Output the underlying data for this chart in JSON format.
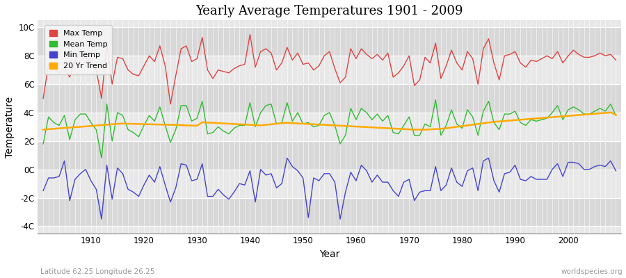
{
  "title": "Yearly Average Temperatures 1901 - 2009",
  "xlabel": "Year",
  "ylabel": "Temperature",
  "subtitle_left": "Latitude 62.25 Longitude 26.25",
  "subtitle_right": "worldspecies.org",
  "start_year": 1901,
  "end_year": 2009,
  "ylim": [
    -4.5,
    10.5
  ],
  "yticks": [
    -4,
    -2,
    0,
    2,
    4,
    6,
    8,
    10
  ],
  "ytick_labels": [
    "-4C",
    "-2C",
    "0C",
    "2C",
    "4C",
    "6C",
    "8C",
    "10C"
  ],
  "fig_bg_color": "#ffffff",
  "plot_bg_color": "#e8e8e8",
  "band_color_light": "#e8e8e8",
  "band_color_dark": "#d8d8d8",
  "grid_color": "#ffffff",
  "max_temp_color": "#dd4444",
  "mean_temp_color": "#33bb33",
  "min_temp_color": "#4444cc",
  "trend_color": "#ffaa00",
  "legend_labels": [
    "Max Temp",
    "Mean Temp",
    "Min Temp",
    "20 Yr Trend"
  ],
  "max_temps": [
    5.0,
    7.4,
    7.2,
    6.8,
    7.1,
    6.5,
    7.6,
    8.3,
    7.9,
    7.5,
    7.0,
    5.0,
    8.8,
    6.0,
    7.9,
    7.8,
    7.0,
    6.7,
    6.6,
    7.3,
    8.0,
    7.6,
    8.7,
    7.3,
    4.6,
    6.6,
    8.5,
    8.7,
    7.6,
    7.8,
    9.3,
    7.0,
    6.4,
    7.0,
    6.9,
    6.8,
    7.1,
    7.3,
    7.4,
    9.5,
    7.2,
    8.3,
    8.5,
    8.2,
    7.0,
    7.5,
    8.6,
    7.7,
    8.2,
    7.4,
    7.5,
    7.0,
    7.3,
    8.0,
    8.3,
    7.1,
    6.1,
    6.5,
    8.5,
    7.8,
    8.5,
    8.1,
    7.8,
    8.1,
    7.7,
    8.2,
    6.5,
    6.8,
    7.3,
    8.0,
    5.9,
    6.3,
    7.9,
    7.5,
    8.9,
    6.4,
    7.3,
    8.4,
    7.5,
    7.0,
    8.3,
    7.8,
    6.0,
    8.5,
    9.2,
    7.5,
    6.3,
    8.0,
    8.1,
    8.3,
    7.5,
    7.2,
    7.7,
    7.6,
    7.8,
    8.0,
    7.8,
    8.3,
    7.5,
    8.0,
    8.4,
    8.1,
    7.9,
    7.9,
    8.0,
    8.2,
    8.0,
    8.1,
    7.7
  ],
  "mean_temps": [
    1.8,
    3.7,
    3.3,
    3.1,
    3.8,
    2.1,
    3.5,
    3.9,
    3.9,
    3.3,
    2.8,
    0.8,
    4.6,
    2.0,
    4.0,
    3.8,
    2.8,
    2.6,
    2.3,
    3.1,
    3.8,
    3.4,
    4.4,
    3.1,
    1.9,
    2.8,
    4.5,
    4.5,
    3.4,
    3.6,
    4.8,
    2.5,
    2.6,
    3.0,
    2.7,
    2.5,
    2.9,
    3.1,
    3.1,
    4.7,
    3.0,
    4.0,
    4.5,
    4.6,
    3.2,
    3.3,
    4.7,
    3.4,
    4.0,
    3.2,
    3.3,
    3.0,
    3.1,
    3.8,
    4.0,
    3.1,
    1.8,
    2.4,
    4.3,
    3.5,
    4.3,
    4.0,
    3.5,
    3.9,
    3.4,
    3.8,
    2.6,
    2.5,
    3.1,
    3.7,
    2.4,
    2.4,
    3.2,
    3.0,
    4.9,
    2.4,
    3.1,
    4.2,
    3.2,
    2.9,
    4.2,
    3.7,
    2.4,
    4.1,
    4.8,
    3.3,
    2.8,
    3.9,
    3.9,
    4.1,
    3.3,
    3.1,
    3.5,
    3.4,
    3.5,
    3.6,
    4.0,
    4.5,
    3.5,
    4.2,
    4.4,
    4.2,
    3.9,
    3.9,
    4.1,
    4.3,
    4.1,
    4.6,
    3.8
  ],
  "min_temps": [
    -1.5,
    -0.6,
    -0.6,
    -0.5,
    0.6,
    -2.2,
    -0.7,
    -0.3,
    0.0,
    -0.8,
    -1.4,
    -3.5,
    0.3,
    -2.1,
    0.1,
    -0.3,
    -1.4,
    -1.6,
    -1.9,
    -1.1,
    -0.4,
    -0.9,
    0.2,
    -1.1,
    -2.3,
    -1.3,
    0.4,
    0.3,
    -0.8,
    -0.7,
    0.4,
    -1.9,
    -1.9,
    -1.4,
    -1.8,
    -2.1,
    -1.6,
    -1.0,
    -1.1,
    -0.1,
    -2.3,
    0.0,
    -0.4,
    -0.3,
    -1.3,
    -1.0,
    0.8,
    0.2,
    -0.1,
    -0.6,
    -3.4,
    -0.6,
    -0.8,
    -0.3,
    -0.3,
    -0.9,
    -3.5,
    -1.6,
    -0.2,
    -0.8,
    0.3,
    -0.1,
    -0.9,
    -0.4,
    -0.9,
    -0.9,
    -1.5,
    -1.9,
    -0.9,
    -0.7,
    -2.2,
    -1.6,
    -1.5,
    -1.5,
    0.2,
    -1.5,
    -1.1,
    0.1,
    -0.9,
    -1.2,
    -0.1,
    0.1,
    -1.5,
    0.6,
    0.8,
    -0.8,
    -1.6,
    -0.3,
    -0.2,
    0.3,
    -0.7,
    -0.8,
    -0.5,
    -0.7,
    -0.7,
    -0.7,
    0.0,
    0.4,
    -0.5,
    0.5,
    0.5,
    0.4,
    0.0,
    0.0,
    0.2,
    0.3,
    0.2,
    0.6,
    -0.1
  ],
  "trend_20yr": [
    2.8,
    2.83,
    2.86,
    2.89,
    2.92,
    2.95,
    2.97,
    3.0,
    3.03,
    3.06,
    3.09,
    3.12,
    3.15,
    3.18,
    3.21,
    3.23,
    3.22,
    3.21,
    3.2,
    3.19,
    3.18,
    3.17,
    3.16,
    3.15,
    3.14,
    3.13,
    3.12,
    3.1,
    3.09,
    3.08,
    3.32,
    3.3,
    3.28,
    3.26,
    3.24,
    3.22,
    3.2,
    3.18,
    3.16,
    3.14,
    3.12,
    3.1,
    3.14,
    3.18,
    3.22,
    3.26,
    3.28,
    3.26,
    3.24,
    3.22,
    3.2,
    3.18,
    3.16,
    3.14,
    3.12,
    3.1,
    3.08,
    3.06,
    3.04,
    3.02,
    3.0,
    2.98,
    2.96,
    2.94,
    2.92,
    2.9,
    2.88,
    2.86,
    2.84,
    2.82,
    2.8,
    2.8,
    2.8,
    2.82,
    2.84,
    2.86,
    2.9,
    2.95,
    3.0,
    3.05,
    3.1,
    3.15,
    3.2,
    3.25,
    3.3,
    3.35,
    3.38,
    3.41,
    3.44,
    3.47,
    3.5,
    3.53,
    3.56,
    3.59,
    3.62,
    3.65,
    3.68,
    3.71,
    3.74,
    3.77,
    3.8,
    3.83,
    3.86,
    3.89,
    3.92,
    3.95,
    3.98,
    4.01,
    3.85
  ]
}
